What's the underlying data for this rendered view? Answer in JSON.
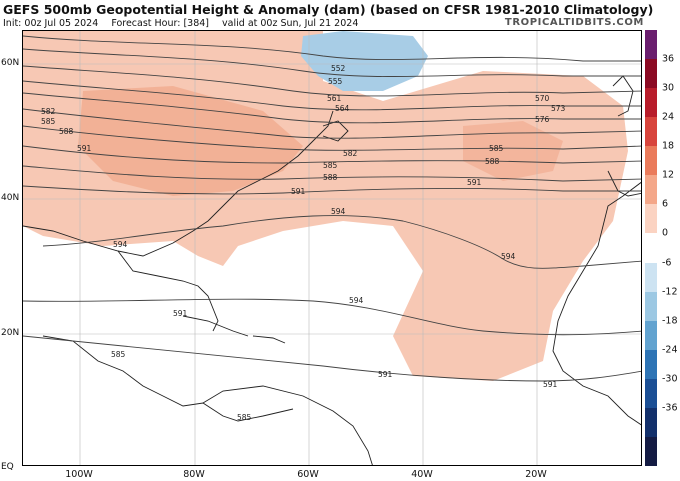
{
  "header": {
    "title": "GEFS 500mb Geopotential Height & Anomaly (dam) (based on CFSR 1981-2010 Climatology)",
    "init": "Init: 00z Jul 05 2024",
    "forecast_hour": "Forecast Hour: [384]",
    "valid": "valid at 00z Sun, Jul 21 2024",
    "brand": "TROPICALTIDBITS.COM"
  },
  "map": {
    "lat_labels": [
      "60N",
      "40N",
      "20N",
      "EQ"
    ],
    "lon_labels": [
      "100W",
      "80W",
      "60W",
      "40W",
      "20W"
    ],
    "contour_labels": [
      "552",
      "555",
      "561",
      "564",
      "570",
      "573",
      "576",
      "582",
      "585",
      "588",
      "591",
      "594"
    ],
    "colors": {
      "positive_light": "#f7c8b4",
      "positive_mid": "#f0a98c",
      "negative_light": "#a8cde6",
      "coast": "#222222",
      "contour": "#444444"
    }
  },
  "colorbar": {
    "ticks": [
      "36",
      "30",
      "24",
      "18",
      "12",
      "6",
      "0",
      "-6",
      "-12",
      "-18",
      "-24",
      "-30",
      "-36"
    ],
    "colors": [
      "#6a1e6e",
      "#8b0a23",
      "#b81d2b",
      "#d8453d",
      "#ea7b5b",
      "#f4a789",
      "#fbd3c2",
      "#ffffff",
      "#cde3f2",
      "#9cc8e3",
      "#62a3d0",
      "#2e74b5",
      "#1b4f95",
      "#13306b",
      "#141b43"
    ]
  }
}
